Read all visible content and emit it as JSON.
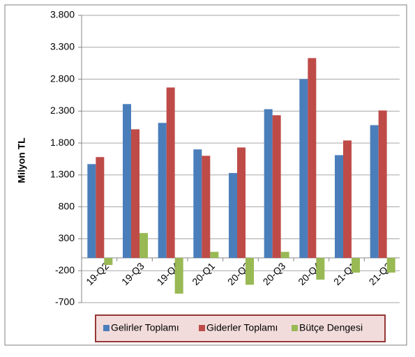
{
  "chart_data": {
    "type": "bar",
    "y_label": "Milyon TL",
    "categories": [
      "19-Q2",
      "19-Q3",
      "19-Q4",
      "20-Q1",
      "20-Q2",
      "20-Q3",
      "20-Q4",
      "21-Q1",
      "21-Q2"
    ],
    "series": [
      {
        "name": "Gelirler Toplamı",
        "color": "#4a7ebb",
        "values": [
          1470,
          2410,
          2115,
          1700,
          1330,
          2330,
          2800,
          1610,
          2080
        ]
      },
      {
        "name": "Giderler Toplamı",
        "color": "#be4b48",
        "values": [
          1580,
          2015,
          2670,
          1600,
          1730,
          2235,
          3130,
          1840,
          2310
        ]
      },
      {
        "name": "Bütçe Dengesi",
        "color": "#98b954",
        "values": [
          -110,
          390,
          -560,
          95,
          -420,
          95,
          -340,
          -230,
          -230
        ]
      }
    ],
    "ylim": [
      -700,
      3800
    ],
    "yticks": [
      -700,
      -200,
      300,
      800,
      {
        "value": 1300,
        "label": "1.300"
      },
      {
        "value": 1800,
        "label": "1.800"
      },
      {
        "value": 2300,
        "label": "2.300"
      },
      {
        "value": 2800,
        "label": "2.800"
      },
      {
        "value": 3300,
        "label": "3.300"
      },
      {
        "value": 3800,
        "label": "3.800"
      }
    ],
    "grid": true,
    "legend": "bottom"
  }
}
